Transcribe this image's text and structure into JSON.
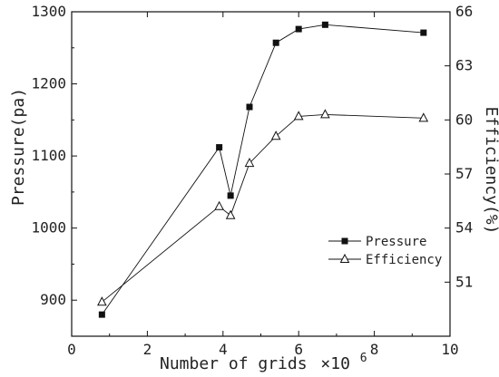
{
  "chart_data": {
    "type": "line",
    "x": [
      0.8,
      3.9,
      4.2,
      4.7,
      5.4,
      6.0,
      6.7,
      9.3
    ],
    "series": [
      {
        "name": "Pressure",
        "axis": "left",
        "marker": "filled-square",
        "values": [
          880,
          1112,
          1045,
          1168,
          1257,
          1276,
          1282,
          1271
        ]
      },
      {
        "name": "Efficiency",
        "axis": "right",
        "marker": "open-triangle",
        "values": [
          49.9,
          55.2,
          54.7,
          57.6,
          59.1,
          60.2,
          60.3,
          60.1
        ]
      }
    ],
    "xlabel": "Number of grids",
    "xlabel_multiplier": "×10",
    "xlabel_exponent": "6",
    "ylabel_left": "Pressure(pa)",
    "ylabel_right": "Efficiency(%)",
    "xlim": [
      0,
      10
    ],
    "ylim_left": [
      850,
      1300
    ],
    "ylim_right": [
      48,
      66
    ],
    "xticks": [
      0,
      2,
      4,
      6,
      8,
      10
    ],
    "yticks_left": [
      900,
      1000,
      1100,
      1200,
      1300
    ],
    "yticks_right": [
      51,
      54,
      57,
      60,
      63,
      66
    ],
    "grid": false,
    "legend_position": "lower-right"
  }
}
